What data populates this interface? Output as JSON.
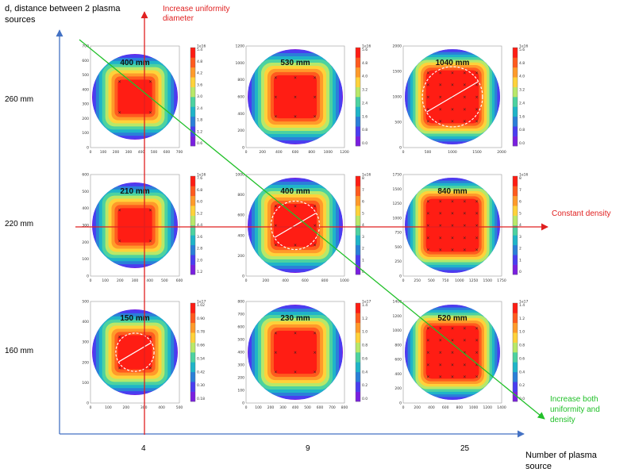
{
  "axes": {
    "y_title": "d, distance between 2 plasma sources",
    "x_title": "Number of plasma source",
    "rows": [
      "260 mm",
      "220 mm",
      "160 mm"
    ],
    "cols": [
      "4",
      "9",
      "25"
    ]
  },
  "annotations": {
    "vertical": "Increase uniformity diameter",
    "horizontal": "Constant density",
    "diagonal": "Increase both uniformity and density"
  },
  "panels": [
    {
      "label": "400 mm",
      "n": 2,
      "xticks": [
        "0",
        "100",
        "200",
        "300",
        "400",
        "500",
        "600",
        "700"
      ],
      "yticks": [
        "700",
        "600",
        "500",
        "400",
        "300",
        "200",
        "100",
        "0"
      ],
      "cbar_exp": "1e16",
      "cbar": [
        "5.4",
        "4.8",
        "4.2",
        "3.6",
        "3.0",
        "2.4",
        "1.8",
        "1.2",
        "0.6"
      ],
      "circle": false
    },
    {
      "label": "530 mm",
      "n": 3,
      "xticks": [
        "0",
        "200",
        "400",
        "600",
        "800",
        "1000",
        "1200"
      ],
      "yticks": [
        "1200",
        "1000",
        "800",
        "600",
        "400",
        "200",
        "0"
      ],
      "cbar_exp": "1e16",
      "cbar": [
        "5.6",
        "4.8",
        "4.0",
        "3.2",
        "2.4",
        "1.6",
        "0.8",
        "0.0"
      ],
      "circle": false
    },
    {
      "label": "1040 mm",
      "n": 5,
      "xticks": [
        "0",
        "500",
        "1000",
        "1500",
        "2000"
      ],
      "yticks": [
        "2000",
        "1500",
        "1000",
        "500",
        "0"
      ],
      "cbar_exp": "1e16",
      "cbar": [
        "5.6",
        "4.8",
        "4.0",
        "3.2",
        "2.4",
        "1.6",
        "0.8",
        "0.0"
      ],
      "circle": true
    },
    {
      "label": "210 mm",
      "n": 2,
      "xticks": [
        "0",
        "100",
        "200",
        "300",
        "400",
        "500",
        "600"
      ],
      "yticks": [
        "600",
        "500",
        "400",
        "300",
        "200",
        "100",
        "0"
      ],
      "cbar_exp": "1e16",
      "cbar": [
        "7.6",
        "6.8",
        "6.0",
        "5.2",
        "4.4",
        "3.6",
        "2.8",
        "2.0",
        "1.2"
      ],
      "circle": false
    },
    {
      "label": "400 mm",
      "n": 3,
      "xticks": [
        "0",
        "200",
        "400",
        "600",
        "800",
        "1000"
      ],
      "yticks": [
        "1000",
        "800",
        "600",
        "400",
        "200",
        "0"
      ],
      "cbar_exp": "1e16",
      "cbar": [
        "8",
        "7",
        "6",
        "5",
        "4",
        "3",
        "2",
        "1",
        "0"
      ],
      "circle": true
    },
    {
      "label": "840 mm",
      "n": 5,
      "xticks": [
        "0",
        "250",
        "500",
        "750",
        "1000",
        "1250",
        "1500",
        "1750"
      ],
      "yticks": [
        "1750",
        "1500",
        "1250",
        "1000",
        "750",
        "500",
        "250",
        "0"
      ],
      "cbar_exp": "1e16",
      "cbar": [
        "8",
        "7",
        "6",
        "5",
        "4",
        "3",
        "2",
        "1",
        "0"
      ],
      "circle": false
    },
    {
      "label": "150 mm",
      "n": 2,
      "xticks": [
        "0",
        "100",
        "200",
        "300",
        "400",
        "500"
      ],
      "yticks": [
        "500",
        "400",
        "300",
        "200",
        "100",
        "0"
      ],
      "cbar_exp": "1e17",
      "cbar": [
        "1.02",
        "0.90",
        "0.78",
        "0.66",
        "0.54",
        "0.42",
        "0.30",
        "0.18"
      ],
      "circle": true
    },
    {
      "label": "230 mm",
      "n": 3,
      "xticks": [
        "0",
        "100",
        "200",
        "300",
        "400",
        "500",
        "600",
        "700",
        "800"
      ],
      "yticks": [
        "800",
        "700",
        "600",
        "500",
        "400",
        "300",
        "200",
        "100",
        "0"
      ],
      "cbar_exp": "1e17",
      "cbar": [
        "1.4",
        "1.2",
        "1.0",
        "0.8",
        "0.6",
        "0.4",
        "0.2",
        "0.0"
      ],
      "circle": false
    },
    {
      "label": "520 mm",
      "n": 5,
      "xticks": [
        "0",
        "200",
        "400",
        "600",
        "800",
        "1000",
        "1200",
        "1400"
      ],
      "yticks": [
        "1400",
        "1200",
        "1000",
        "800",
        "600",
        "400",
        "200",
        "0"
      ],
      "cbar_exp": "1e17",
      "cbar": [
        "1.4",
        "1.2",
        "1.0",
        "0.8",
        "0.6",
        "0.4",
        "0.2",
        "0.0"
      ],
      "circle": false
    }
  ],
  "colors": {
    "axis_blue": "#4472c4",
    "annot_red": "#e02020",
    "annot_green": "#22c02a",
    "colormap": [
      "#7a1fe0",
      "#4a3df0",
      "#2b7fd8",
      "#1fb4c8",
      "#4cd2a0",
      "#b8e868",
      "#ffd23a",
      "#ff9a2a",
      "#ff5a1e",
      "#ff1d14"
    ]
  }
}
